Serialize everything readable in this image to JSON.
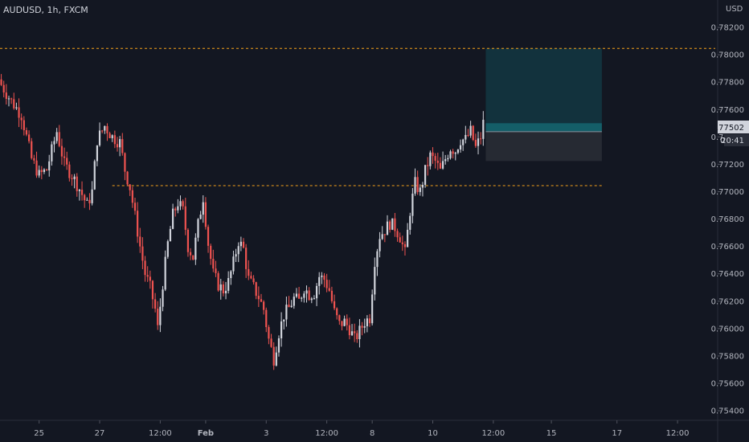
{
  "symbol_label": "AUDUSD, 1h, FXCM",
  "currency_label": "USD",
  "colors": {
    "background": "#131722",
    "up": "#d1d4dc",
    "down": "#ef5350",
    "level_line": "#f7a21b",
    "profit_zone": "#12323d",
    "loss_zone": "#262a33",
    "entry_line": "#1e7b86",
    "axis_text": "#b2b5be"
  },
  "chart_data": {
    "type": "candlestick",
    "yaxis": {
      "ticks": [
        "0.78200",
        "0.78000",
        "0.77800",
        "0.77600",
        "0.77400",
        "0.77200",
        "0.77000",
        "0.76800",
        "0.76600",
        "0.76400",
        "0.76200",
        "0.76000",
        "0.75800",
        "0.75600",
        "0.75400"
      ],
      "range": [
        0.7533,
        0.784
      ]
    },
    "xaxis": {
      "ticks": [
        {
          "label": "25",
          "bar": 15
        },
        {
          "label": "27",
          "bar": 39
        },
        {
          "label": "12:00",
          "bar": 63
        },
        {
          "label": "Feb",
          "bar": 81
        },
        {
          "label": "3",
          "bar": 105
        },
        {
          "label": "12:00",
          "bar": 129
        },
        {
          "label": "8",
          "bar": 147
        },
        {
          "label": "10",
          "bar": 171
        },
        {
          "label": "12:00",
          "bar": 195
        },
        {
          "label": "15",
          "bar": 218
        },
        {
          "label": "17",
          "bar": 244
        },
        {
          "label": "12:00",
          "bar": 268
        }
      ],
      "total_bars": 285
    },
    "close_path": [
      [
        0,
        0.7778
      ],
      [
        4,
        0.7766
      ],
      [
        8,
        0.7756
      ],
      [
        12,
        0.7724
      ],
      [
        15,
        0.7712
      ],
      [
        18,
        0.7716
      ],
      [
        22,
        0.7744
      ],
      [
        25,
        0.772
      ],
      [
        28,
        0.7712
      ],
      [
        31,
        0.7702
      ],
      [
        34,
        0.769
      ],
      [
        36,
        0.77
      ],
      [
        38,
        0.7738
      ],
      [
        41,
        0.7748
      ],
      [
        44,
        0.774
      ],
      [
        47,
        0.7736
      ],
      [
        49,
        0.7716
      ],
      [
        51,
        0.7703
      ],
      [
        53,
        0.7682
      ],
      [
        55,
        0.766
      ],
      [
        57,
        0.764
      ],
      [
        59,
        0.763
      ],
      [
        61,
        0.7614
      ],
      [
        62,
        0.76
      ],
      [
        64,
        0.7633
      ],
      [
        66,
        0.7662
      ],
      [
        68,
        0.7683
      ],
      [
        70,
        0.7692
      ],
      [
        72,
        0.7686
      ],
      [
        74,
        0.766
      ],
      [
        76,
        0.7652
      ],
      [
        78,
        0.7676
      ],
      [
        80,
        0.7696
      ],
      [
        82,
        0.7662
      ],
      [
        84,
        0.764
      ],
      [
        86,
        0.7632
      ],
      [
        88,
        0.7628
      ],
      [
        90,
        0.7634
      ],
      [
        92,
        0.7648
      ],
      [
        94,
        0.7664
      ],
      [
        96,
        0.7658
      ],
      [
        98,
        0.7636
      ],
      [
        100,
        0.763
      ],
      [
        102,
        0.7623
      ],
      [
        104,
        0.7614
      ],
      [
        106,
        0.7592
      ],
      [
        108,
        0.7578
      ],
      [
        110,
        0.7597
      ],
      [
        112,
        0.761
      ],
      [
        114,
        0.7615
      ],
      [
        116,
        0.7622
      ],
      [
        118,
        0.762
      ],
      [
        120,
        0.763
      ],
      [
        122,
        0.7625
      ],
      [
        124,
        0.7626
      ],
      [
        126,
        0.7638
      ],
      [
        128,
        0.7636
      ],
      [
        130,
        0.7628
      ],
      [
        132,
        0.7612
      ],
      [
        134,
        0.7603
      ],
      [
        136,
        0.7605
      ],
      [
        138,
        0.76
      ],
      [
        140,
        0.7592
      ],
      [
        142,
        0.7598
      ],
      [
        144,
        0.7605
      ],
      [
        146,
        0.7608
      ],
      [
        148,
        0.765
      ],
      [
        150,
        0.7668
      ],
      [
        152,
        0.7672
      ],
      [
        154,
        0.7677
      ],
      [
        156,
        0.7674
      ],
      [
        158,
        0.7667
      ],
      [
        160,
        0.7655
      ],
      [
        162,
        0.7686
      ],
      [
        164,
        0.7706
      ],
      [
        166,
        0.77
      ],
      [
        168,
        0.7715
      ],
      [
        170,
        0.7726
      ],
      [
        172,
        0.7722
      ],
      [
        174,
        0.7715
      ],
      [
        176,
        0.7724
      ],
      [
        178,
        0.7732
      ],
      [
        180,
        0.773
      ],
      [
        182,
        0.7738
      ],
      [
        184,
        0.7738
      ],
      [
        186,
        0.7744
      ],
      [
        188,
        0.7732
      ],
      [
        190,
        0.774
      ],
      [
        191,
        0.775
      ]
    ],
    "levels": [
      {
        "name": "resistance",
        "price": 0.78046,
        "from_bar": 0,
        "to_bar": 285
      },
      {
        "name": "support",
        "price": 0.77044,
        "from_bar": 44,
        "to_bar": 238
      }
    ],
    "position": {
      "type": "long",
      "from_bar": 192,
      "to_bar": 238,
      "target": 0.78046,
      "entry": 0.77438,
      "stop": 0.77224
    },
    "price_labels": {
      "current_price": "0.77502",
      "countdown": "20:41",
      "left_mark": "0"
    }
  }
}
